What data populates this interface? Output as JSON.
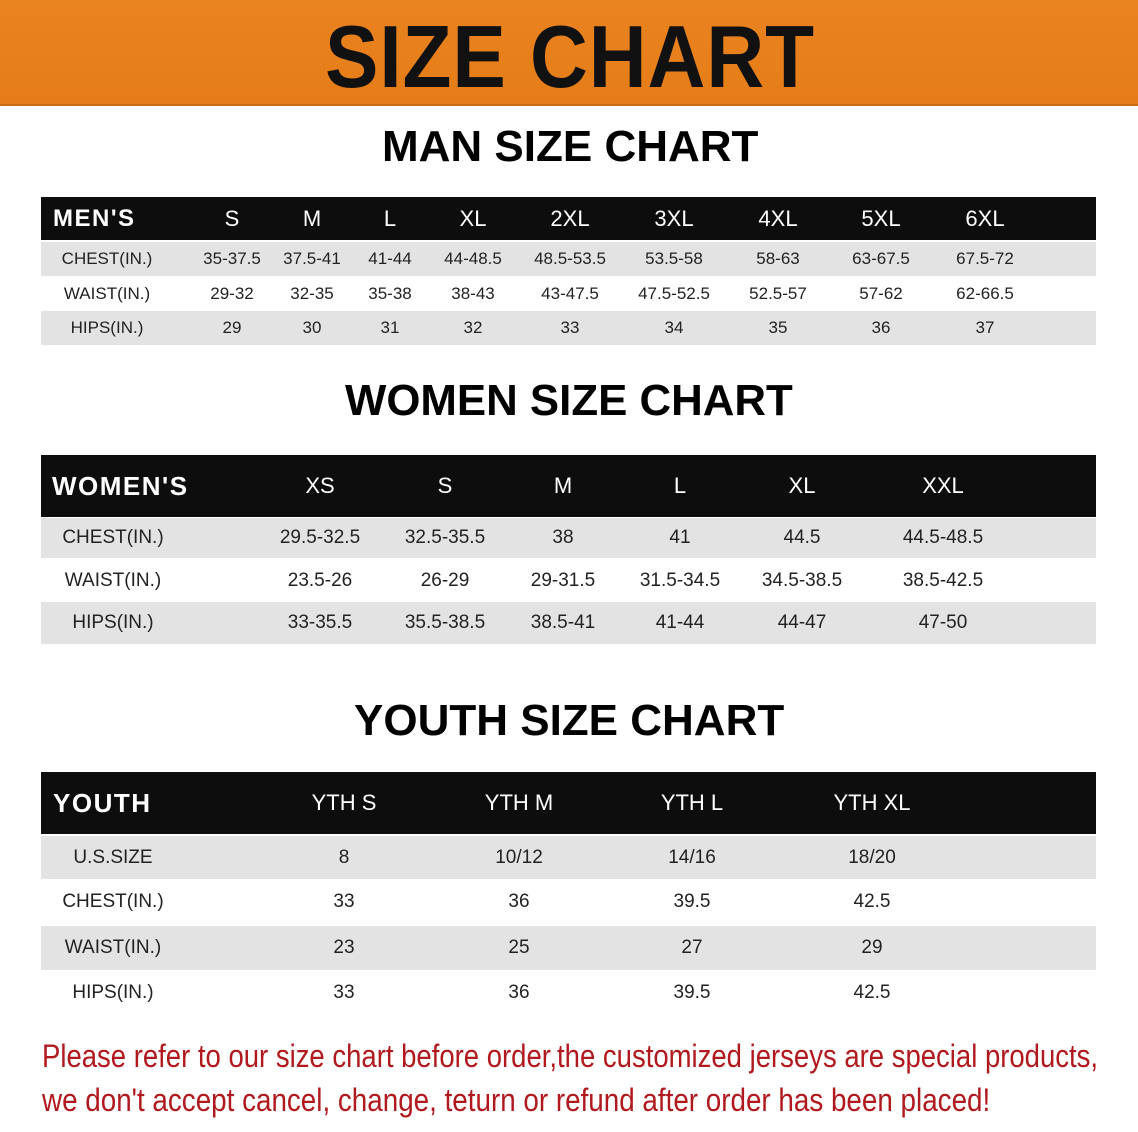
{
  "title": "SIZE CHART",
  "colors": {
    "banner": "#e8801e",
    "header_row": "#0d0d0d",
    "note": "#b0191e"
  },
  "men": {
    "title": "MAN SIZE CHART",
    "header": [
      "MEN'S",
      "S",
      "M",
      "L",
      "XL",
      "2XL",
      "3XL",
      "4XL",
      "5XL",
      "6XL"
    ],
    "rows": [
      [
        "CHEST(IN.)",
        "35-37.5",
        "37.5-41",
        "41-44",
        "44-48.5",
        "48.5-53.5",
        "53.5-58",
        "58-63",
        "63-67.5",
        "67.5-72"
      ],
      [
        "WAIST(IN.)",
        "29-32",
        "32-35",
        "35-38",
        "38-43",
        "43-47.5",
        "47.5-52.5",
        "52.5-57",
        "57-62",
        "62-66.5"
      ],
      [
        "HIPS(IN.)",
        "29",
        "30",
        "31",
        "32",
        "33",
        "34",
        "35",
        "36",
        "37"
      ]
    ]
  },
  "women": {
    "title": "WOMEN SIZE CHART",
    "header": [
      "WOMEN'S",
      "XS",
      "S",
      "M",
      "L",
      "XL",
      "XXL"
    ],
    "rows": [
      [
        "CHEST(IN.)",
        "29.5-32.5",
        "32.5-35.5",
        "38",
        "41",
        "44.5",
        "44.5-48.5"
      ],
      [
        "WAIST(IN.)",
        "23.5-26",
        "26-29",
        "29-31.5",
        "31.5-34.5",
        "34.5-38.5",
        "38.5-42.5"
      ],
      [
        "HIPS(IN.)",
        "33-35.5",
        "35.5-38.5",
        "38.5-41",
        "41-44",
        "44-47",
        "47-50"
      ]
    ]
  },
  "youth": {
    "title": "YOUTH SIZE CHART",
    "header": [
      "YOUTH",
      "YTH S",
      "YTH M",
      "YTH L",
      "YTH XL"
    ],
    "rows": [
      [
        "U.S.SIZE",
        "8",
        "10/12",
        "14/16",
        "18/20"
      ],
      [
        "CHEST(IN.)",
        "33",
        "36",
        "39.5",
        "42.5"
      ],
      [
        "WAIST(IN.)",
        "23",
        "25",
        "27",
        "29"
      ],
      [
        "HIPS(IN.)",
        "33",
        "36",
        "39.5",
        "42.5"
      ]
    ]
  },
  "note": {
    "line1": "Please refer to our size chart before order,the customized jerseys are special products,",
    "line2": "we don't accept cancel, change, teturn or refund after order has been placed!"
  }
}
